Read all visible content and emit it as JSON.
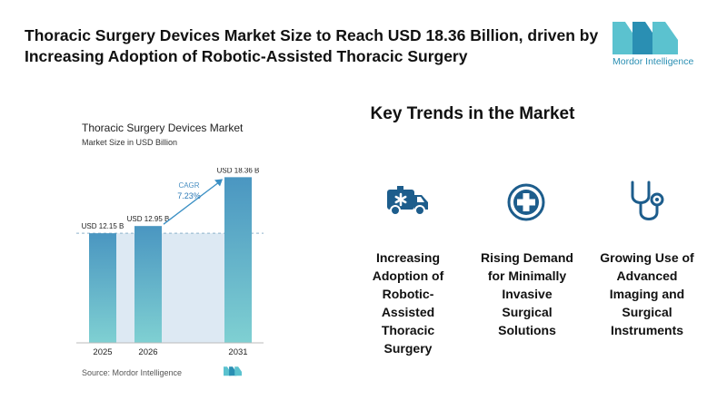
{
  "header": {
    "title": "Thoracic Surgery Devices Market Size to Reach USD 18.36 Billion, driven by Increasing Adoption of Robotic-Assisted Thoracic Surgery"
  },
  "brand": {
    "name": "Mordor Intelligence",
    "color": "#2a8fb3",
    "accent": "#5bc2cf"
  },
  "chart_data": {
    "type": "bar",
    "title": "Thoracic Surgery Devices Market",
    "subtitle": "Market Size in USD Billion",
    "categories": [
      "2025",
      "2026",
      "2031"
    ],
    "values": [
      12.15,
      12.95,
      18.36
    ],
    "value_labels": [
      "USD 12.15 B",
      "USD 12.95 B",
      "USD 18.36 B"
    ],
    "cagr_label": "CAGR",
    "cagr_value": "7.23%",
    "ylim": [
      0,
      19
    ],
    "bar_color_top": "#4a96c1",
    "bar_color_bottom": "#7fd0d2",
    "source": "Source: Mordor Intelligence"
  },
  "trends": {
    "title": "Key Trends in the Market",
    "items": [
      {
        "icon": "ambulance-icon",
        "label_lines": [
          "Increasing",
          "Adoption of",
          "Robotic-",
          "Assisted",
          "Thoracic",
          "Surgery"
        ]
      },
      {
        "icon": "medical-cross-icon",
        "label_lines": [
          "Rising Demand",
          "for Minimally",
          "Invasive",
          "Surgical",
          "Solutions"
        ]
      },
      {
        "icon": "stethoscope-icon",
        "label_lines": [
          "Growing Use of",
          "Advanced",
          "Imaging and",
          "Surgical",
          "Instruments"
        ]
      }
    ],
    "icon_color": "#1d5d8c"
  }
}
